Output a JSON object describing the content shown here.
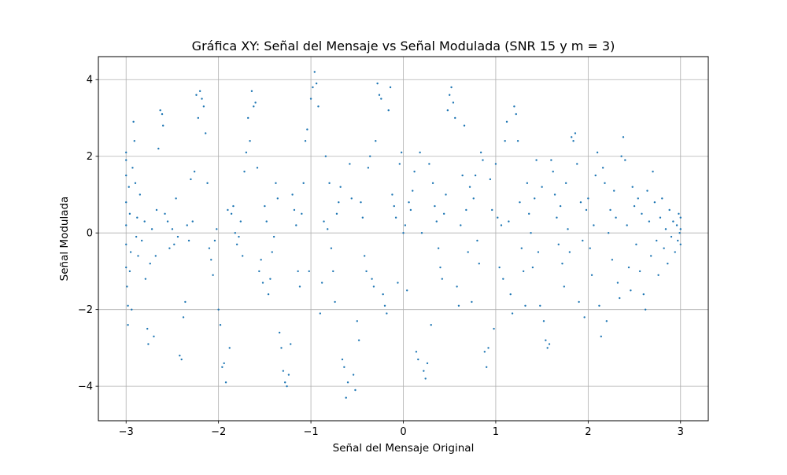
{
  "chart_data": {
    "type": "scatter",
    "title": "Gráfica XY: Señal del Mensaje vs Señal Modulada (SNR 15 y m = 3)",
    "xlabel": "Señal del Mensaje Original",
    "ylabel": "Señal Modulada",
    "xlim": [
      -3.3,
      3.3
    ],
    "ylim": [
      -4.9,
      4.6
    ],
    "xticks": [
      -3,
      -2,
      -1,
      0,
      1,
      2,
      3
    ],
    "xtick_labels": [
      "−3",
      "−2",
      "−1",
      "0",
      "1",
      "2",
      "3"
    ],
    "yticks": [
      -4,
      -2,
      0,
      2,
      4
    ],
    "ytick_labels": [
      "−4",
      "−2",
      "0",
      "2",
      "4"
    ],
    "grid": true,
    "marker_color": "#1f77b4",
    "series": [
      {
        "points": [
          [
            -3.0,
            2.1
          ],
          [
            -3.0,
            1.9
          ],
          [
            -3.0,
            1.5
          ],
          [
            -3.0,
            0.8
          ],
          [
            -3.0,
            0.2
          ],
          [
            -3.0,
            -0.3
          ],
          [
            -3.0,
            -0.9
          ],
          [
            -2.99,
            -1.4
          ],
          [
            -2.98,
            -1.9
          ],
          [
            -2.98,
            -2.4
          ],
          [
            -2.97,
            1.2
          ],
          [
            -2.96,
            0.5
          ],
          [
            -2.96,
            -1.0
          ],
          [
            -2.95,
            -0.5
          ],
          [
            -2.94,
            -2.0
          ],
          [
            -2.93,
            1.7
          ],
          [
            -2.92,
            2.9
          ],
          [
            -2.91,
            2.4
          ],
          [
            -2.9,
            1.3
          ],
          [
            -2.89,
            -0.1
          ],
          [
            -2.88,
            0.4
          ],
          [
            -2.87,
            -0.6
          ],
          [
            -2.85,
            1.0
          ],
          [
            -2.83,
            -0.2
          ],
          [
            -2.8,
            0.3
          ],
          [
            -2.79,
            -1.2
          ],
          [
            -2.77,
            -2.5
          ],
          [
            -2.76,
            -2.9
          ],
          [
            -2.74,
            -0.8
          ],
          [
            -2.72,
            0.1
          ],
          [
            -2.7,
            -2.7
          ],
          [
            -2.68,
            -0.6
          ],
          [
            -2.67,
            0.6
          ],
          [
            -2.65,
            2.2
          ],
          [
            -2.63,
            3.2
          ],
          [
            -2.61,
            3.1
          ],
          [
            -2.6,
            2.8
          ],
          [
            -2.58,
            0.5
          ],
          [
            -2.55,
            0.3
          ],
          [
            -2.53,
            -0.4
          ],
          [
            -2.5,
            0.1
          ],
          [
            -2.48,
            -0.3
          ],
          [
            -2.46,
            0.9
          ],
          [
            -2.44,
            -0.1
          ],
          [
            -2.42,
            -3.2
          ],
          [
            -2.4,
            -3.3
          ],
          [
            -2.38,
            -2.2
          ],
          [
            -2.36,
            -1.8
          ],
          [
            -2.34,
            0.2
          ],
          [
            -2.32,
            -0.2
          ],
          [
            -2.3,
            1.4
          ],
          [
            -2.28,
            0.3
          ],
          [
            -2.26,
            1.6
          ],
          [
            -2.24,
            3.6
          ],
          [
            -2.22,
            3.0
          ],
          [
            -2.2,
            3.7
          ],
          [
            -2.18,
            3.5
          ],
          [
            -2.16,
            3.3
          ],
          [
            -2.14,
            2.6
          ],
          [
            -2.12,
            1.3
          ],
          [
            -2.1,
            -0.4
          ],
          [
            -2.08,
            -0.7
          ],
          [
            -2.06,
            -1.1
          ],
          [
            -2.04,
            -0.2
          ],
          [
            -2.02,
            0.1
          ],
          [
            -2.0,
            -2.0
          ],
          [
            -1.98,
            -2.4
          ],
          [
            -1.96,
            -3.5
          ],
          [
            -1.94,
            -3.4
          ],
          [
            -1.92,
            -3.9
          ],
          [
            -1.9,
            0.6
          ],
          [
            -1.88,
            -3.0
          ],
          [
            -1.86,
            0.5
          ],
          [
            -1.84,
            0.7
          ],
          [
            -1.82,
            0.0
          ],
          [
            -1.8,
            -0.3
          ],
          [
            -1.78,
            -0.1
          ],
          [
            -1.76,
            0.3
          ],
          [
            -1.74,
            -0.6
          ],
          [
            -1.72,
            1.6
          ],
          [
            -1.7,
            2.1
          ],
          [
            -1.68,
            3.0
          ],
          [
            -1.66,
            2.4
          ],
          [
            -1.64,
            3.7
          ],
          [
            -1.62,
            3.3
          ],
          [
            -1.6,
            3.4
          ],
          [
            -1.58,
            1.7
          ],
          [
            -1.56,
            -1.0
          ],
          [
            -1.54,
            -0.7
          ],
          [
            -1.52,
            -1.3
          ],
          [
            -1.5,
            0.7
          ],
          [
            -1.48,
            0.3
          ],
          [
            -1.46,
            -1.6
          ],
          [
            -1.44,
            -1.2
          ],
          [
            -1.42,
            -0.5
          ],
          [
            -1.4,
            -0.1
          ],
          [
            -1.38,
            1.3
          ],
          [
            -1.36,
            0.9
          ],
          [
            -1.34,
            -2.6
          ],
          [
            -1.32,
            -3.0
          ],
          [
            -1.3,
            -3.6
          ],
          [
            -1.28,
            -3.9
          ],
          [
            -1.26,
            -4.0
          ],
          [
            -1.24,
            -3.7
          ],
          [
            -1.22,
            -2.9
          ],
          [
            -1.2,
            1.0
          ],
          [
            -1.18,
            0.6
          ],
          [
            -1.16,
            0.2
          ],
          [
            -1.14,
            -1.0
          ],
          [
            -1.12,
            -1.4
          ],
          [
            -1.1,
            0.5
          ],
          [
            -1.08,
            1.3
          ],
          [
            -1.06,
            2.4
          ],
          [
            -1.04,
            2.7
          ],
          [
            -1.02,
            -1.0
          ],
          [
            -1.0,
            3.5
          ],
          [
            -0.98,
            3.8
          ],
          [
            -0.96,
            4.2
          ],
          [
            -0.94,
            3.9
          ],
          [
            -0.92,
            3.3
          ],
          [
            -0.9,
            -2.1
          ],
          [
            -0.88,
            -1.3
          ],
          [
            -0.86,
            0.3
          ],
          [
            -0.84,
            2.0
          ],
          [
            -0.82,
            0.1
          ],
          [
            -0.8,
            1.3
          ],
          [
            -0.78,
            -0.4
          ],
          [
            -0.76,
            -1.0
          ],
          [
            -0.74,
            -1.8
          ],
          [
            -0.72,
            0.5
          ],
          [
            -0.7,
            0.8
          ],
          [
            -0.68,
            1.2
          ],
          [
            -0.66,
            -3.3
          ],
          [
            -0.64,
            -3.5
          ],
          [
            -0.62,
            -4.3
          ],
          [
            -0.6,
            -3.9
          ],
          [
            -0.58,
            1.8
          ],
          [
            -0.56,
            0.9
          ],
          [
            -0.54,
            -3.7
          ],
          [
            -0.52,
            -4.1
          ],
          [
            -0.5,
            -2.3
          ],
          [
            -0.48,
            -2.8
          ],
          [
            -0.46,
            0.8
          ],
          [
            -0.44,
            0.4
          ],
          [
            -0.42,
            -0.6
          ],
          [
            -0.4,
            -1.0
          ],
          [
            -0.38,
            1.7
          ],
          [
            -0.36,
            2.0
          ],
          [
            -0.34,
            -1.2
          ],
          [
            -0.32,
            -1.4
          ],
          [
            -0.3,
            2.4
          ],
          [
            -0.28,
            3.9
          ],
          [
            -0.26,
            3.6
          ],
          [
            -0.24,
            3.5
          ],
          [
            -0.22,
            -1.6
          ],
          [
            -0.2,
            -1.9
          ],
          [
            -0.18,
            -2.1
          ],
          [
            -0.16,
            3.2
          ],
          [
            -0.14,
            3.8
          ],
          [
            -0.12,
            1.0
          ],
          [
            -0.1,
            0.7
          ],
          [
            -0.08,
            0.4
          ],
          [
            -0.06,
            -1.3
          ],
          [
            -0.04,
            1.8
          ],
          [
            -0.02,
            2.1
          ],
          [
            0.0,
            0.0
          ],
          [
            0.02,
            0.2
          ],
          [
            0.04,
            -1.5
          ],
          [
            0.06,
            0.8
          ],
          [
            0.08,
            0.6
          ],
          [
            0.1,
            1.1
          ],
          [
            0.12,
            1.6
          ],
          [
            0.14,
            -3.1
          ],
          [
            0.16,
            -3.3
          ],
          [
            0.18,
            2.1
          ],
          [
            0.2,
            0.0
          ],
          [
            0.22,
            -3.6
          ],
          [
            0.24,
            -3.8
          ],
          [
            0.26,
            -3.4
          ],
          [
            0.28,
            1.8
          ],
          [
            0.3,
            -2.4
          ],
          [
            0.32,
            1.3
          ],
          [
            0.34,
            0.7
          ],
          [
            0.36,
            0.3
          ],
          [
            0.38,
            -0.4
          ],
          [
            0.4,
            -0.9
          ],
          [
            0.42,
            -1.2
          ],
          [
            0.44,
            0.5
          ],
          [
            0.46,
            1.0
          ],
          [
            0.48,
            3.2
          ],
          [
            0.5,
            3.6
          ],
          [
            0.52,
            3.8
          ],
          [
            0.54,
            3.4
          ],
          [
            0.56,
            3.0
          ],
          [
            0.58,
            -1.4
          ],
          [
            0.6,
            -1.9
          ],
          [
            0.62,
            0.2
          ],
          [
            0.64,
            1.5
          ],
          [
            0.66,
            2.8
          ],
          [
            0.68,
            0.6
          ],
          [
            0.7,
            -0.5
          ],
          [
            0.72,
            1.2
          ],
          [
            0.74,
            -1.8
          ],
          [
            0.76,
            0.9
          ],
          [
            0.78,
            1.5
          ],
          [
            0.8,
            -0.2
          ],
          [
            0.82,
            -0.8
          ],
          [
            0.84,
            2.1
          ],
          [
            0.86,
            1.9
          ],
          [
            0.88,
            -3.1
          ],
          [
            0.9,
            -3.5
          ],
          [
            0.92,
            -3.0
          ],
          [
            0.94,
            1.4
          ],
          [
            0.96,
            0.6
          ],
          [
            0.98,
            -2.5
          ],
          [
            1.0,
            1.8
          ],
          [
            1.02,
            0.4
          ],
          [
            1.04,
            -0.9
          ],
          [
            1.06,
            0.2
          ],
          [
            1.08,
            -1.2
          ],
          [
            1.1,
            2.4
          ],
          [
            1.12,
            2.9
          ],
          [
            1.14,
            0.3
          ],
          [
            1.16,
            -1.6
          ],
          [
            1.18,
            -2.1
          ],
          [
            1.2,
            3.3
          ],
          [
            1.22,
            3.1
          ],
          [
            1.24,
            2.4
          ],
          [
            1.26,
            0.8
          ],
          [
            1.28,
            -0.4
          ],
          [
            1.3,
            -1.0
          ],
          [
            1.32,
            -1.9
          ],
          [
            1.34,
            1.3
          ],
          [
            1.36,
            0.5
          ],
          [
            1.38,
            0.0
          ],
          [
            1.4,
            -0.9
          ],
          [
            1.42,
            0.9
          ],
          [
            1.44,
            1.9
          ],
          [
            1.46,
            -0.5
          ],
          [
            1.48,
            -1.9
          ],
          [
            1.5,
            1.2
          ],
          [
            1.52,
            -2.3
          ],
          [
            1.54,
            -2.8
          ],
          [
            1.56,
            -3.0
          ],
          [
            1.58,
            -2.9
          ],
          [
            1.6,
            1.9
          ],
          [
            1.62,
            1.6
          ],
          [
            1.64,
            1.0
          ],
          [
            1.66,
            0.4
          ],
          [
            1.68,
            -0.3
          ],
          [
            1.7,
            0.7
          ],
          [
            1.72,
            -0.8
          ],
          [
            1.74,
            -1.4
          ],
          [
            1.76,
            1.3
          ],
          [
            1.78,
            0.1
          ],
          [
            1.8,
            -0.5
          ],
          [
            1.82,
            2.5
          ],
          [
            1.84,
            2.4
          ],
          [
            1.86,
            2.6
          ],
          [
            1.88,
            1.8
          ],
          [
            1.9,
            -1.8
          ],
          [
            1.92,
            0.8
          ],
          [
            1.94,
            -0.2
          ],
          [
            1.96,
            -2.2
          ],
          [
            1.98,
            0.6
          ],
          [
            2.0,
            0.9
          ],
          [
            2.02,
            -0.4
          ],
          [
            2.04,
            -1.1
          ],
          [
            2.06,
            0.2
          ],
          [
            2.08,
            1.5
          ],
          [
            2.1,
            2.1
          ],
          [
            2.12,
            -1.9
          ],
          [
            2.14,
            -2.7
          ],
          [
            2.16,
            1.7
          ],
          [
            2.18,
            1.3
          ],
          [
            2.2,
            -2.3
          ],
          [
            2.22,
            0.0
          ],
          [
            2.24,
            0.6
          ],
          [
            2.26,
            -0.7
          ],
          [
            2.28,
            1.1
          ],
          [
            2.3,
            0.4
          ],
          [
            2.32,
            -1.3
          ],
          [
            2.34,
            -1.7
          ],
          [
            2.36,
            2.0
          ],
          [
            2.38,
            2.5
          ],
          [
            2.4,
            1.9
          ],
          [
            2.42,
            0.2
          ],
          [
            2.44,
            -0.9
          ],
          [
            2.46,
            -1.5
          ],
          [
            2.48,
            1.2
          ],
          [
            2.5,
            0.7
          ],
          [
            2.52,
            -0.3
          ],
          [
            2.54,
            0.9
          ],
          [
            2.56,
            -1.0
          ],
          [
            2.58,
            0.5
          ],
          [
            2.6,
            -1.6
          ],
          [
            2.62,
            -2.0
          ],
          [
            2.64,
            1.1
          ],
          [
            2.66,
            0.3
          ],
          [
            2.68,
            -0.6
          ],
          [
            2.7,
            1.6
          ],
          [
            2.72,
            0.8
          ],
          [
            2.74,
            -0.2
          ],
          [
            2.76,
            -1.1
          ],
          [
            2.78,
            0.4
          ],
          [
            2.8,
            0.9
          ],
          [
            2.82,
            -0.4
          ],
          [
            2.84,
            0.1
          ],
          [
            2.86,
            -0.8
          ],
          [
            2.88,
            0.6
          ],
          [
            2.9,
            -0.1
          ],
          [
            2.92,
            0.3
          ],
          [
            2.94,
            -0.5
          ],
          [
            2.96,
            0.2
          ],
          [
            2.97,
            -0.2
          ],
          [
            2.98,
            0.5
          ],
          [
            2.99,
            0.0
          ],
          [
            3.0,
            0.1
          ],
          [
            3.0,
            -0.3
          ],
          [
            3.0,
            0.4
          ]
        ]
      }
    ]
  }
}
